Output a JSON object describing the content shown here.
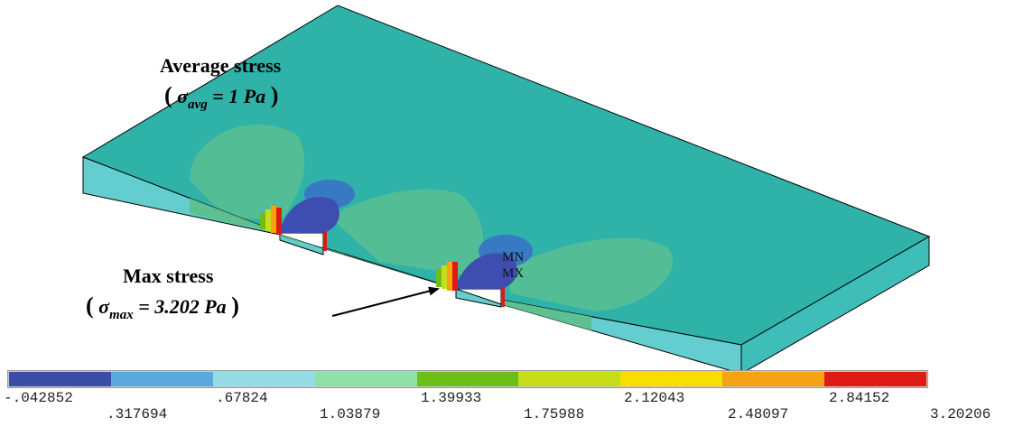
{
  "annotations": {
    "average_title": "Average stress",
    "average_formula": {
      "symbol": "σ",
      "subscript": "avg",
      "value": "= 1 Pa"
    },
    "max_title": "Max stress",
    "max_formula": {
      "symbol": "σ",
      "subscript": "max",
      "value": "= 3.202 Pa"
    },
    "min_node": "MN",
    "max_node": "MX"
  },
  "colors": {
    "plate_top": "#2fb2a8",
    "plate_side": "#64cdd0",
    "hole_wall": "#3d4db0",
    "contour_green": "#5cc091"
  },
  "legend": {
    "colors": [
      "#3b4da8",
      "#5aa9de",
      "#97dbe6",
      "#8ee0a6",
      "#6cbf17",
      "#c6dd1a",
      "#f8de00",
      "#f7a214",
      "#de1a15"
    ],
    "upper_labels": [
      "-.042852",
      ".67824",
      "1.39933",
      "2.12043",
      "2.84152"
    ],
    "lower_labels": [
      ".317694",
      "1.03879",
      "1.75988",
      "2.48097",
      "3.20206"
    ]
  }
}
